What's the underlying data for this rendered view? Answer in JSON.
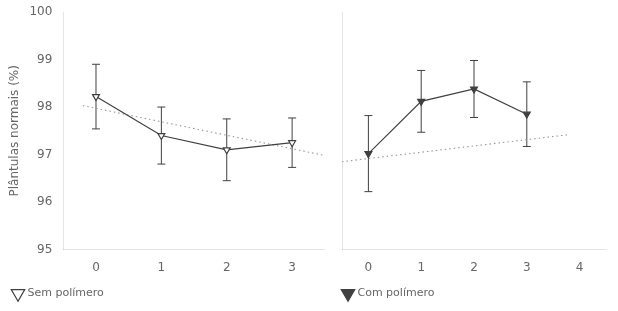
{
  "chart_data": [
    {
      "type": "line",
      "xlim": [
        -0.5,
        3.5
      ],
      "xticks": [
        0,
        1,
        2,
        3
      ],
      "ylim": [
        95,
        100
      ],
      "yticks": [
        95,
        96,
        97,
        98,
        99,
        100
      ],
      "ylabel": "Plântulas normais (%)",
      "grid": false,
      "legend": "lower left",
      "series": [
        {
          "name": "Sem polímero",
          "color": "#404040",
          "marker": "triangle-down-open",
          "line_style": "solid",
          "x": [
            0,
            1,
            2,
            3
          ],
          "values": [
            98.22,
            97.4,
            97.1,
            97.25
          ],
          "errors": [
            0.68,
            0.6,
            0.65,
            0.52
          ]
        },
        {
          "color": "#999999",
          "marker": "none",
          "line_style": "dotted",
          "x": [
            -0.2,
            3.5
          ],
          "values": [
            98.03,
            96.98
          ]
        }
      ]
    },
    {
      "type": "line",
      "xlim": [
        -0.5,
        4.5
      ],
      "xticks": [
        0,
        1,
        2,
        3,
        4
      ],
      "ylim": [
        95,
        100
      ],
      "yticks": [
        95,
        96,
        97,
        98,
        99,
        100
      ],
      "grid": false,
      "legend": "lower left",
      "tick_labels": "x",
      "series": [
        {
          "name": "Com polímero",
          "color": "#404040",
          "marker": "triangle-down",
          "line_style": "solid",
          "x": [
            0,
            1,
            2,
            3
          ],
          "values": [
            97.02,
            98.12,
            98.38,
            97.85
          ],
          "errors": [
            0.8,
            0.65,
            0.6,
            0.68
          ]
        },
        {
          "color": "#999999",
          "marker": "none",
          "line_style": "dotted",
          "x": [
            -0.5,
            3.8
          ],
          "values": [
            96.85,
            97.42
          ]
        }
      ]
    }
  ]
}
